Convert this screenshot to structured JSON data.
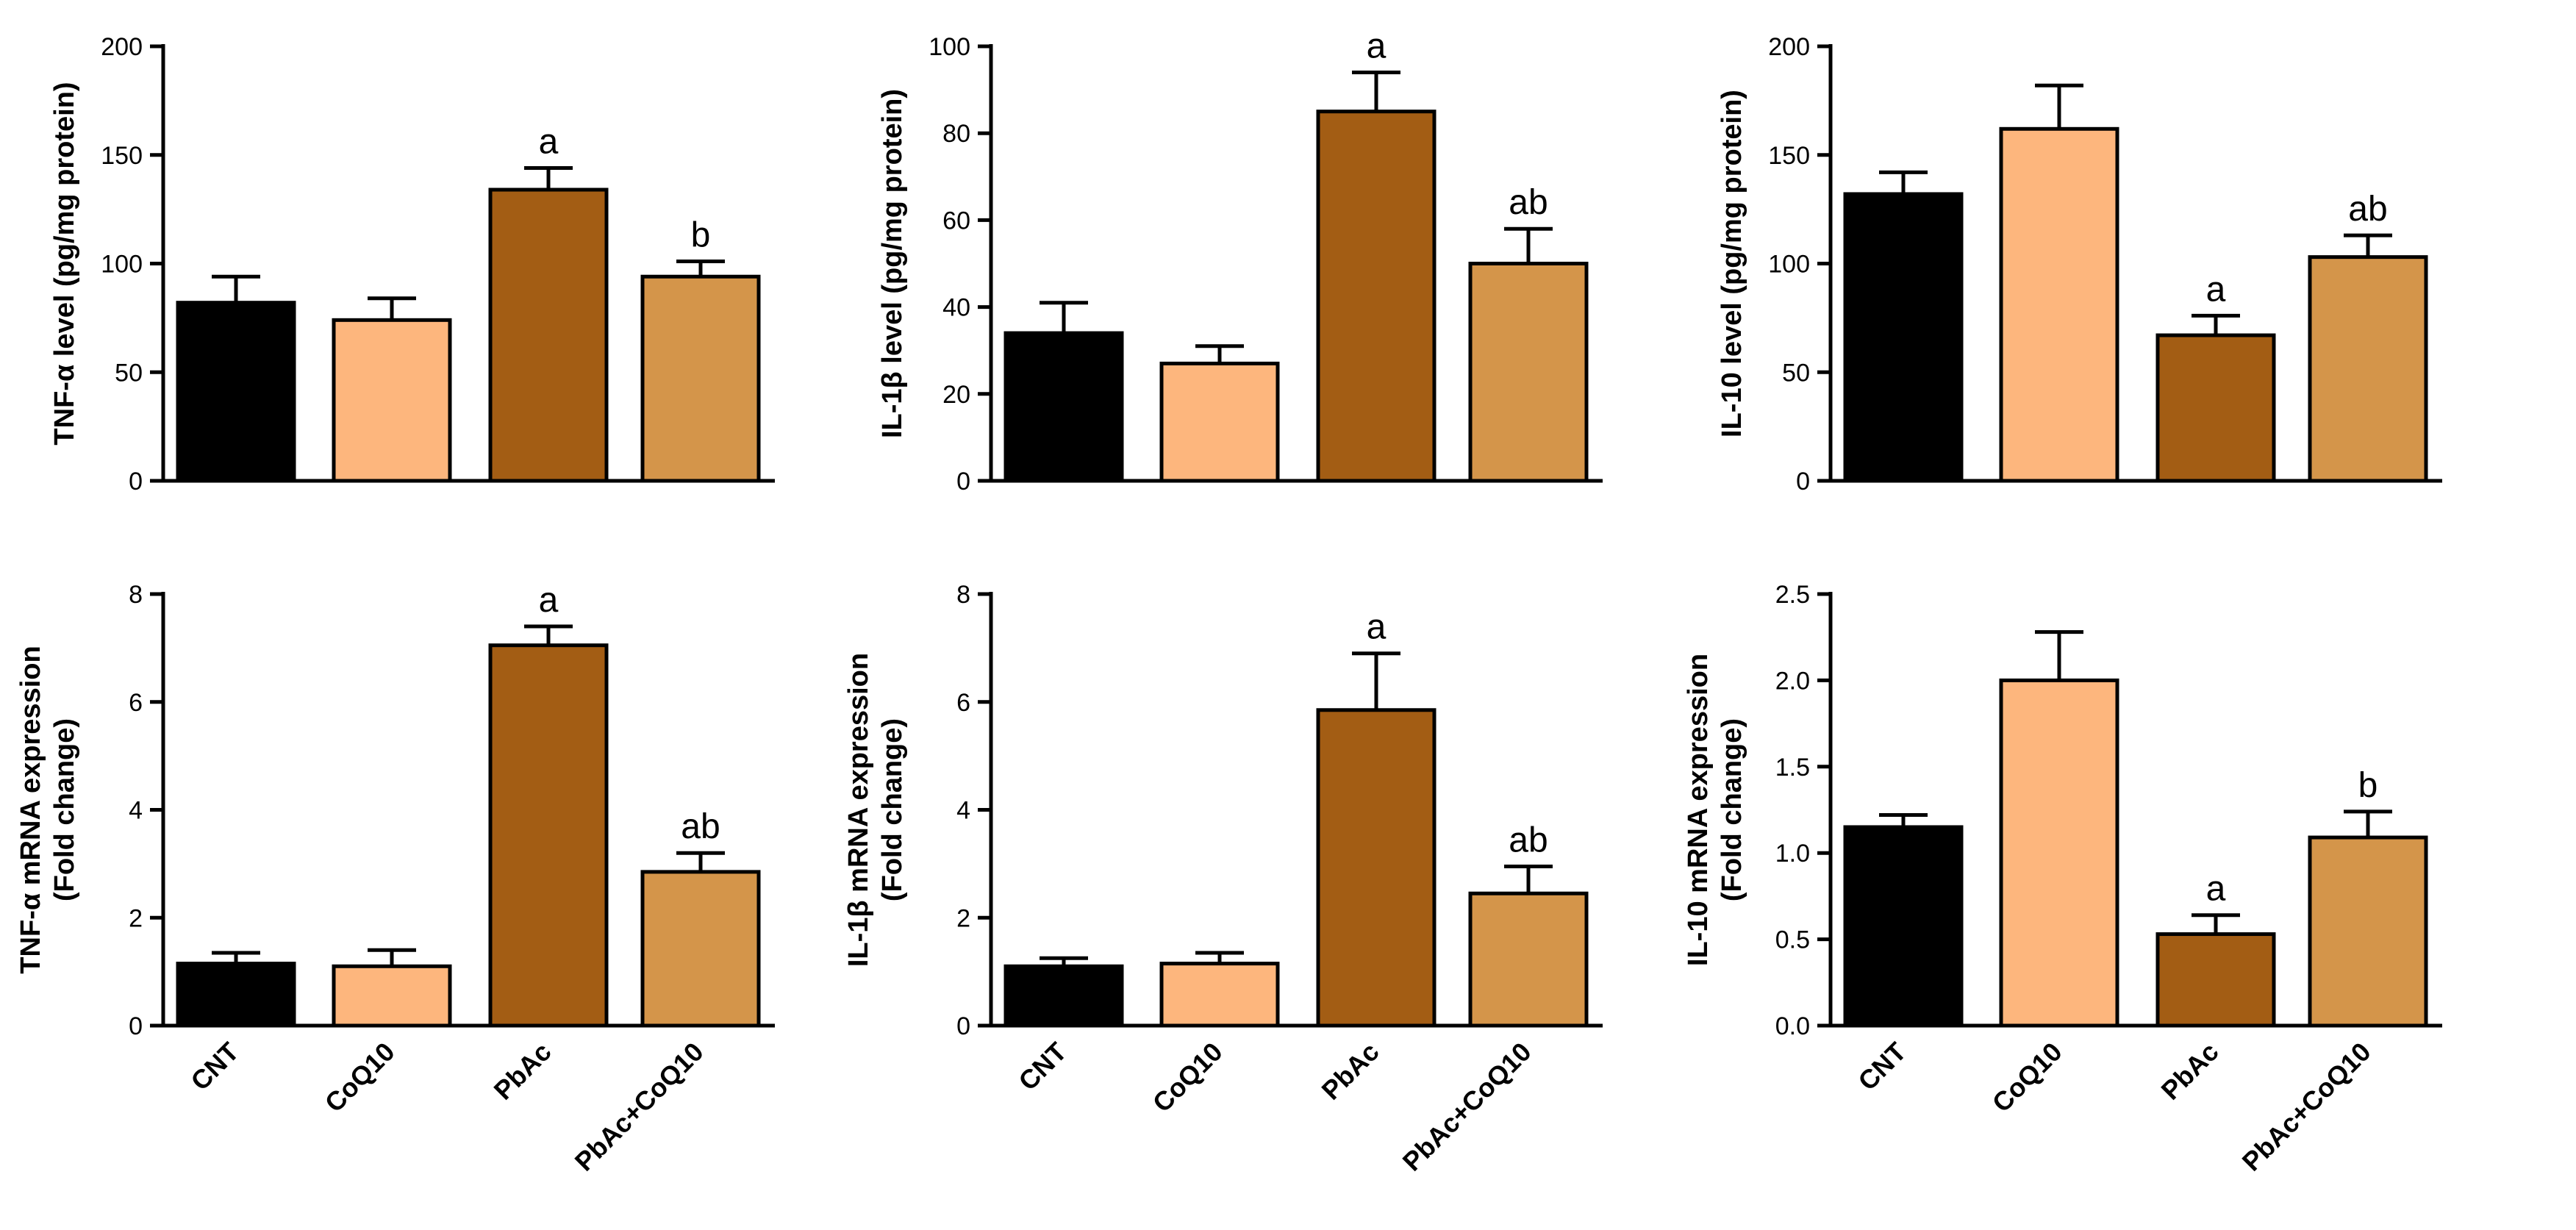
{
  "colors": {
    "CNT": "#000000",
    "CoQ10": "#FDB67D",
    "PbAc": "#A35D14",
    "PbAc+CoQ10": "#D4954A",
    "axis": "#000000"
  },
  "chart_data": [
    {
      "type": "bar",
      "categories": [
        "CNT",
        "CoQ10",
        "PbAc",
        "PbAc+CoQ10"
      ],
      "values": [
        82,
        74,
        134,
        94
      ],
      "errors": [
        12,
        10,
        10,
        7
      ],
      "significance": [
        "",
        "",
        "a",
        "b"
      ],
      "ylabel": "TNF-α level (pg/mg protein)",
      "ylabel_lines": [
        "TNF-α level (pg/mg protein)"
      ],
      "ylim": [
        0,
        200
      ],
      "yticks": [
        0,
        50,
        100,
        150,
        200
      ],
      "ytick_labels": [
        "0",
        "50",
        "100",
        "150",
        "200"
      ],
      "show_category_labels": false
    },
    {
      "type": "bar",
      "categories": [
        "CNT",
        "CoQ10",
        "PbAc",
        "PbAc+CoQ10"
      ],
      "values": [
        34,
        27,
        85,
        50
      ],
      "errors": [
        7,
        4,
        9,
        8
      ],
      "significance": [
        "",
        "",
        "a",
        "ab"
      ],
      "ylabel": "IL-1β level (pg/mg protein)",
      "ylabel_lines": [
        "IL-1β level (pg/mg protein)"
      ],
      "ylim": [
        0,
        100
      ],
      "yticks": [
        0,
        20,
        40,
        60,
        80,
        100
      ],
      "ytick_labels": [
        "0",
        "20",
        "40",
        "60",
        "80",
        "100"
      ],
      "show_category_labels": false
    },
    {
      "type": "bar",
      "categories": [
        "CNT",
        "CoQ10",
        "PbAc",
        "PbAc+CoQ10"
      ],
      "values": [
        132,
        162,
        67,
        103
      ],
      "errors": [
        10,
        20,
        9,
        10
      ],
      "significance": [
        "",
        "",
        "a",
        "ab"
      ],
      "ylabel": "IL-10 level (pg/mg protein)",
      "ylabel_lines": [
        "IL-10 level (pg/mg protein)"
      ],
      "ylim": [
        0,
        200
      ],
      "yticks": [
        0,
        50,
        100,
        150,
        200
      ],
      "ytick_labels": [
        "0",
        "50",
        "100",
        "150",
        "200"
      ],
      "show_category_labels": false
    },
    {
      "type": "bar",
      "categories": [
        "CNT",
        "CoQ10",
        "PbAc",
        "PbAc+CoQ10"
      ],
      "values": [
        1.15,
        1.1,
        7.05,
        2.85
      ],
      "errors": [
        0.2,
        0.3,
        0.35,
        0.35
      ],
      "significance": [
        "",
        "",
        "a",
        "ab"
      ],
      "ylabel": "TNF-α mRNA expression (Fold change)",
      "ylabel_lines": [
        "TNF-α mRNA expression",
        "(Fold change)"
      ],
      "ylim": [
        0,
        8
      ],
      "yticks": [
        0,
        2,
        4,
        6,
        8
      ],
      "ytick_labels": [
        "0",
        "2",
        "4",
        "6",
        "8"
      ],
      "show_category_labels": true
    },
    {
      "type": "bar",
      "categories": [
        "CNT",
        "CoQ10",
        "PbAc",
        "PbAc+CoQ10"
      ],
      "values": [
        1.1,
        1.15,
        5.85,
        2.45
      ],
      "errors": [
        0.15,
        0.2,
        1.05,
        0.5
      ],
      "significance": [
        "",
        "",
        "a",
        "ab"
      ],
      "ylabel": "IL-1β mRNA expression (Fold change)",
      "ylabel_lines": [
        "IL-1β mRNA expression",
        "(Fold change)"
      ],
      "ylim": [
        0,
        8
      ],
      "yticks": [
        0,
        2,
        4,
        6,
        8
      ],
      "ytick_labels": [
        "0",
        "2",
        "4",
        "6",
        "8"
      ],
      "show_category_labels": true
    },
    {
      "type": "bar",
      "categories": [
        "CNT",
        "CoQ10",
        "PbAc",
        "PbAc+CoQ10"
      ],
      "values": [
        1.15,
        2.0,
        0.53,
        1.09
      ],
      "errors": [
        0.07,
        0.28,
        0.11,
        0.15
      ],
      "significance": [
        "",
        "",
        "a",
        "b"
      ],
      "ylabel": "IL-10 mRNA expression (Fold change)",
      "ylabel_lines": [
        "IL-10 mRNA expression",
        "(Fold change)"
      ],
      "ylim": [
        0,
        2.5
      ],
      "yticks": [
        0,
        0.5,
        1.0,
        1.5,
        2.0,
        2.5
      ],
      "ytick_labels": [
        "0.0",
        "0.5",
        "1.0",
        "1.5",
        "2.0",
        "2.5"
      ],
      "show_category_labels": true
    }
  ]
}
